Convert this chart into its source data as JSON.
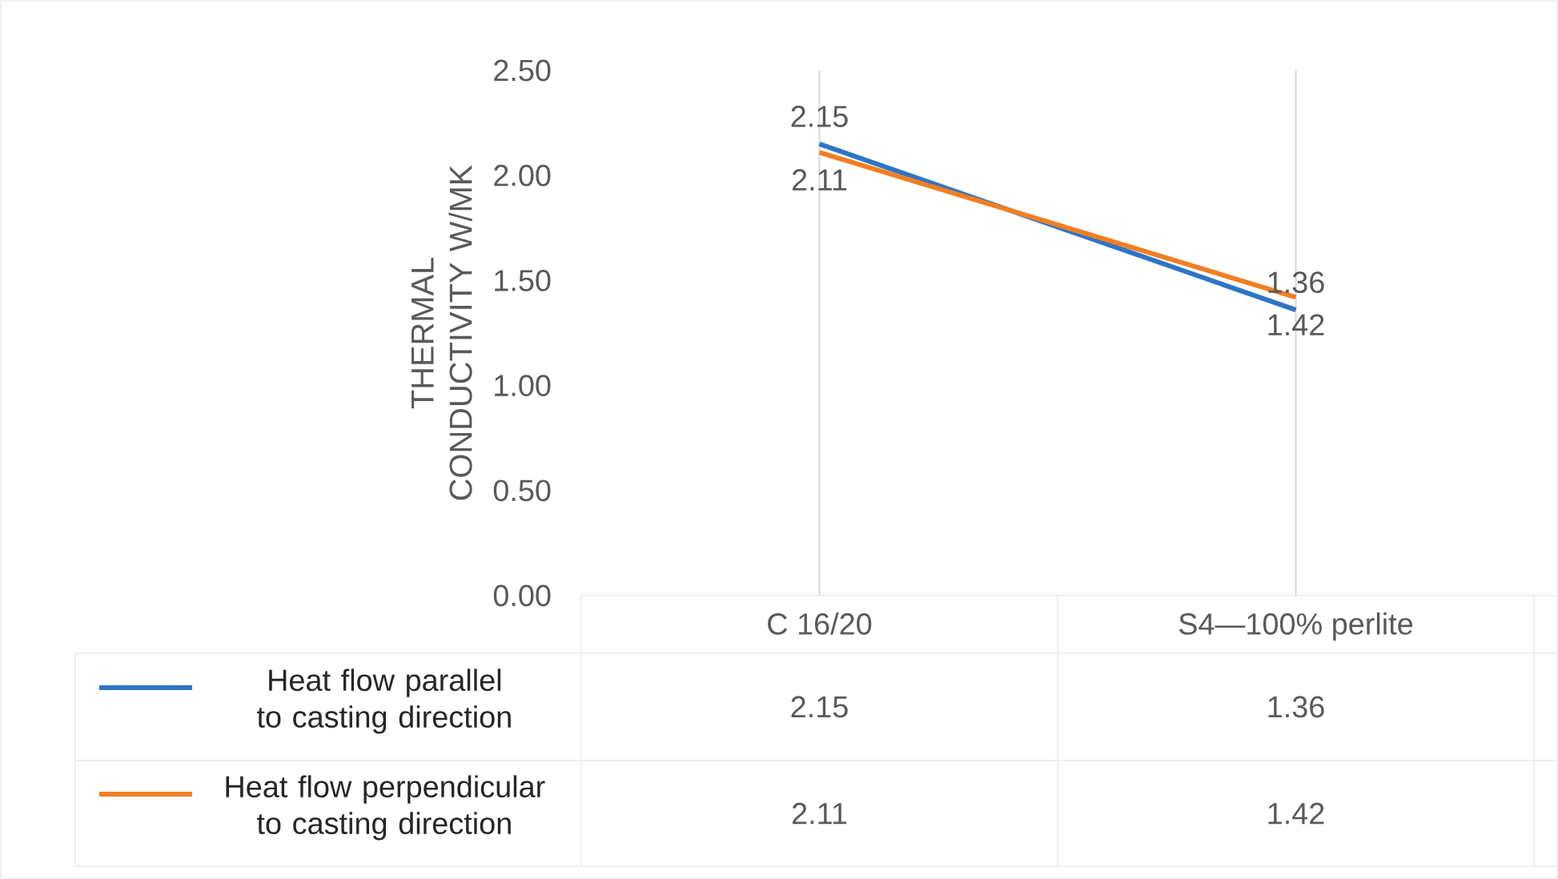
{
  "chart_data": {
    "type": "line",
    "ylabel": "THERMAL CONDUCTIVITY W/MK",
    "categories": [
      "C 16/20",
      "S4—100% perlite"
    ],
    "series": [
      {
        "name": "Heat flow parallel to casting direction",
        "color": "#2e75c6",
        "values": [
          2.15,
          1.36
        ]
      },
      {
        "name": "Heat flow perpendicular to casting direction",
        "color": "#f07f22",
        "values": [
          2.11,
          1.42
        ]
      }
    ],
    "ylim": [
      0,
      2.5
    ],
    "yticks": [
      {
        "value": 0,
        "label": "0.00"
      },
      {
        "value": 0.5,
        "label": "0.50"
      },
      {
        "value": 1,
        "label": "1.00"
      },
      {
        "value": 1.5,
        "label": "1.50"
      },
      {
        "value": 2,
        "label": "2.00"
      },
      {
        "value": 2.5,
        "label": "2.50"
      }
    ],
    "annotations": [
      {
        "text": "2.15",
        "x": "C 16/20",
        "y": 2.15
      },
      {
        "text": "2.11",
        "x": "C 16/20",
        "y": 2.11
      },
      {
        "text": "1.36",
        "x": "S4—100% perlite",
        "y": 1.36
      },
      {
        "text": "1.42",
        "x": "S4—100% perlite",
        "y": 1.42
      }
    ],
    "grid": "x",
    "legend": "bottom",
    "data_labels": true,
    "marker": "none",
    "line_style": "solid"
  }
}
